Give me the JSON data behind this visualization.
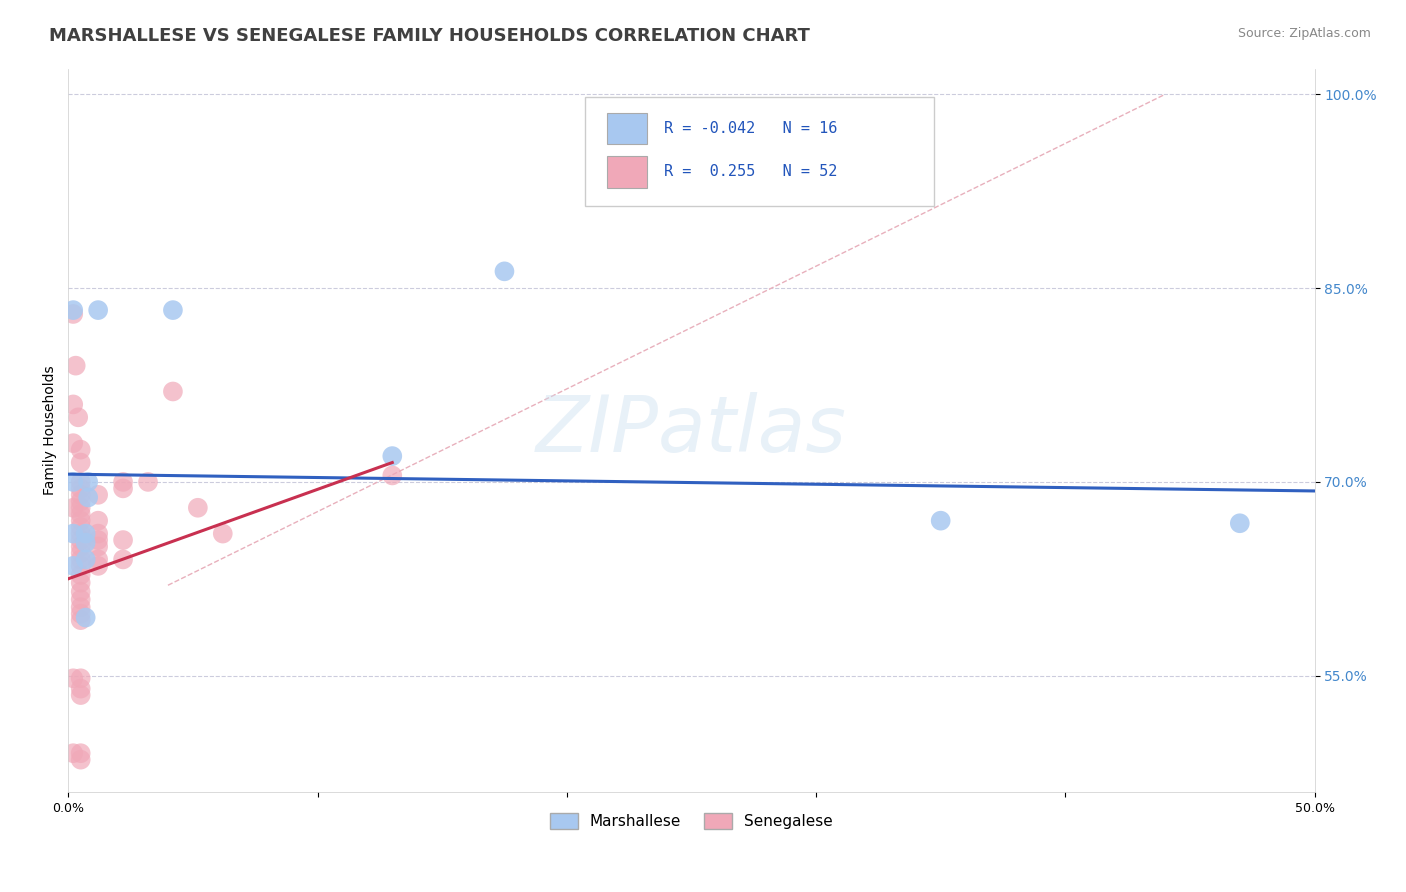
{
  "title": "MARSHALLESE VS SENEGALESE FAMILY HOUSEHOLDS CORRELATION CHART",
  "source": "Source: ZipAtlas.com",
  "ylabel": "Family Households",
  "watermark": "ZIPatlas",
  "xlim": [
    0.0,
    0.5
  ],
  "ylim": [
    0.46,
    1.02
  ],
  "xticks": [
    0.0,
    0.1,
    0.2,
    0.3,
    0.4,
    0.5
  ],
  "xticklabels": [
    "0.0%",
    "",
    "",
    "",
    "",
    "50.0%"
  ],
  "ytick_positions": [
    0.55,
    0.7,
    0.85,
    1.0
  ],
  "yticklabels": [
    "55.0%",
    "70.0%",
    "85.0%",
    "100.0%"
  ],
  "marshallese_color": "#a8c8f0",
  "senegalese_color": "#f0a8b8",
  "trend_blue": "#3060c0",
  "trend_pink": "#c83050",
  "diag_color": "#d0b0b8",
  "marshallese_points": [
    [
      0.002,
      0.833
    ],
    [
      0.012,
      0.833
    ],
    [
      0.042,
      0.833
    ],
    [
      0.175,
      0.863
    ],
    [
      0.002,
      0.7
    ],
    [
      0.008,
      0.7
    ],
    [
      0.008,
      0.688
    ],
    [
      0.13,
      0.72
    ],
    [
      0.002,
      0.66
    ],
    [
      0.007,
      0.66
    ],
    [
      0.007,
      0.653
    ],
    [
      0.002,
      0.635
    ],
    [
      0.007,
      0.595
    ],
    [
      0.35,
      0.67
    ],
    [
      0.47,
      0.668
    ],
    [
      0.007,
      0.64
    ]
  ],
  "senegalese_points": [
    [
      0.002,
      0.83
    ],
    [
      0.003,
      0.79
    ],
    [
      0.002,
      0.76
    ],
    [
      0.004,
      0.75
    ],
    [
      0.002,
      0.73
    ],
    [
      0.005,
      0.725
    ],
    [
      0.005,
      0.715
    ],
    [
      0.005,
      0.7
    ],
    [
      0.005,
      0.695
    ],
    [
      0.005,
      0.69
    ],
    [
      0.005,
      0.685
    ],
    [
      0.005,
      0.68
    ],
    [
      0.005,
      0.675
    ],
    [
      0.005,
      0.67
    ],
    [
      0.005,
      0.665
    ],
    [
      0.005,
      0.66
    ],
    [
      0.005,
      0.655
    ],
    [
      0.005,
      0.65
    ],
    [
      0.005,
      0.645
    ],
    [
      0.005,
      0.64
    ],
    [
      0.005,
      0.635
    ],
    [
      0.005,
      0.628
    ],
    [
      0.005,
      0.622
    ],
    [
      0.005,
      0.615
    ],
    [
      0.005,
      0.609
    ],
    [
      0.005,
      0.603
    ],
    [
      0.005,
      0.598
    ],
    [
      0.005,
      0.593
    ],
    [
      0.012,
      0.69
    ],
    [
      0.012,
      0.67
    ],
    [
      0.012,
      0.66
    ],
    [
      0.012,
      0.655
    ],
    [
      0.012,
      0.65
    ],
    [
      0.012,
      0.64
    ],
    [
      0.012,
      0.635
    ],
    [
      0.022,
      0.7
    ],
    [
      0.022,
      0.695
    ],
    [
      0.022,
      0.655
    ],
    [
      0.022,
      0.64
    ],
    [
      0.032,
      0.7
    ],
    [
      0.042,
      0.77
    ],
    [
      0.052,
      0.68
    ],
    [
      0.062,
      0.66
    ],
    [
      0.002,
      0.548
    ],
    [
      0.005,
      0.548
    ],
    [
      0.005,
      0.54
    ],
    [
      0.005,
      0.535
    ],
    [
      0.002,
      0.49
    ],
    [
      0.005,
      0.49
    ],
    [
      0.005,
      0.485
    ],
    [
      0.002,
      0.68
    ],
    [
      0.13,
      0.705
    ]
  ],
  "title_fontsize": 13,
  "axis_fontsize": 10,
  "tick_fontsize": 9,
  "source_fontsize": 9,
  "legend_fontsize": 11,
  "blue_trend_x": [
    0.0,
    0.5
  ],
  "blue_trend_y": [
    0.706,
    0.693
  ],
  "pink_trend_x": [
    0.0,
    0.13
  ],
  "pink_trend_y": [
    0.62,
    0.71
  ]
}
